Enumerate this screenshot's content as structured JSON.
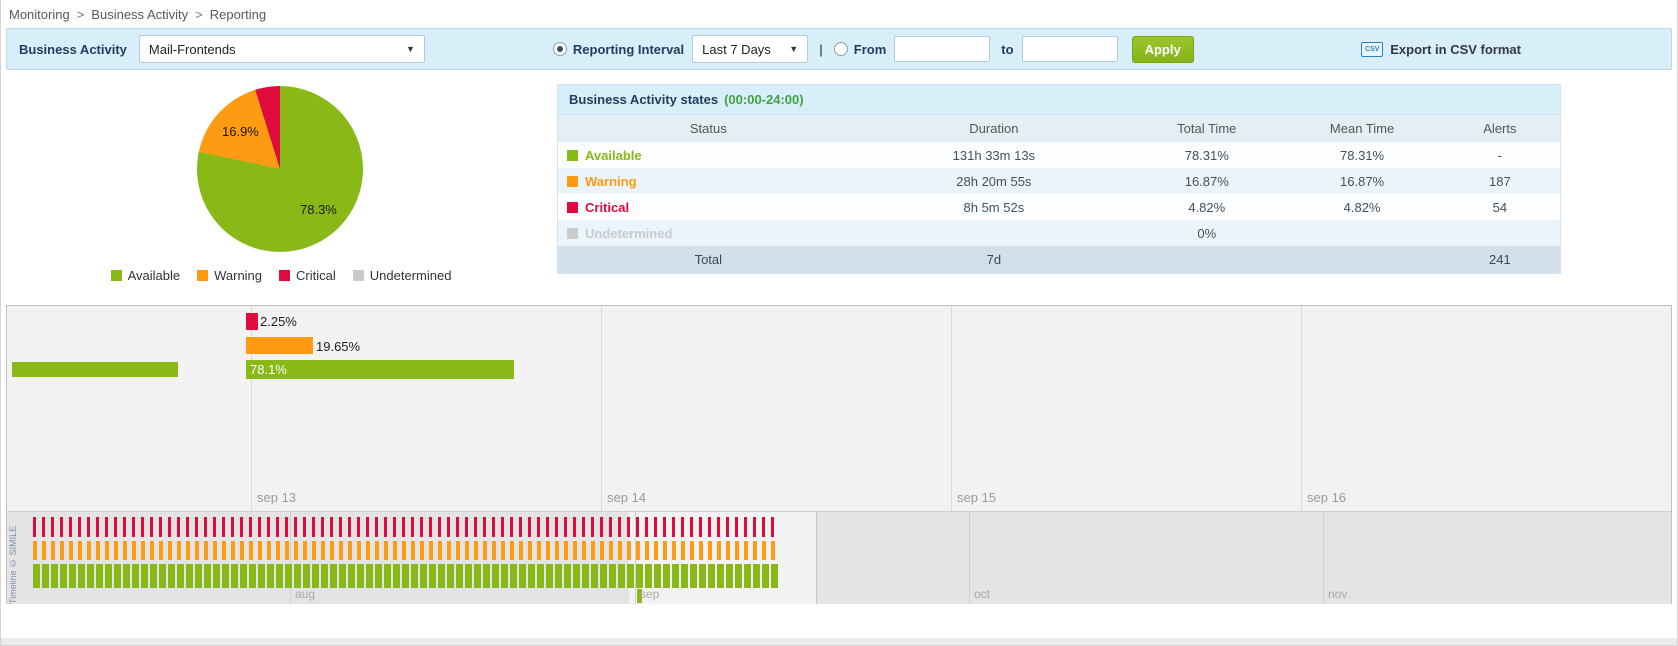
{
  "breadcrumb": {
    "sep": ">",
    "items": [
      "Monitoring",
      "Business Activity",
      "Reporting"
    ]
  },
  "toolbar": {
    "business_activity_label": "Business Activity",
    "business_activity_value": "Mail-Frontends",
    "reporting_interval_label": "Reporting Interval",
    "reporting_interval_value": "Last 7 Days",
    "separator": "|",
    "from_label": "From",
    "from_value": "",
    "to_label": "to",
    "to_value": "",
    "apply_label": "Apply",
    "csv_icon_text": "CSV",
    "export_label": "Export in CSV format"
  },
  "colors": {
    "available": "#88b917",
    "warning": "#ff9a13",
    "critical": "#e00b3d",
    "undetermined": "#c9cbcd"
  },
  "chart_data": [
    {
      "type": "pie",
      "labels": [
        "Available",
        "Warning",
        "Critical"
      ],
      "values": [
        78.31,
        16.87,
        4.82
      ],
      "colors": [
        "#88b917",
        "#ff9a13",
        "#e00b3d"
      ],
      "slice_labels": {
        "available": "78.3%",
        "warning": "16.9%"
      },
      "legend": [
        "Available",
        "Warning",
        "Critical",
        "Undetermined"
      ],
      "legend_position": "bottom"
    },
    {
      "type": "bar",
      "title": "Business activity state timeline",
      "bars": [
        {
          "name": "Critical",
          "label": "2.25%",
          "value": 2.25
        },
        {
          "name": "Warning",
          "label": "19.65%",
          "value": 19.65
        },
        {
          "name": "Available",
          "label": "78.1%",
          "value": 78.1
        }
      ],
      "x_ticks": [
        "sep 13",
        "sep 14",
        "sep 15",
        "sep 16"
      ],
      "overview_months": [
        "aug",
        "sep",
        "oct",
        "nov"
      ]
    }
  ],
  "table": {
    "title": "Business Activity states",
    "title_range": "(00:00-24:00)",
    "columns": [
      "Status",
      "Duration",
      "Total Time",
      "Mean Time",
      "Alerts"
    ],
    "rows": [
      {
        "status": "Available",
        "duration": "131h 33m 13s",
        "total_time": "78.31%",
        "mean_time": "78.31%",
        "alerts": "-"
      },
      {
        "status": "Warning",
        "duration": "28h 20m 55s",
        "total_time": "16.87%",
        "mean_time": "16.87%",
        "alerts": "187"
      },
      {
        "status": "Critical",
        "duration": "8h 5m 52s",
        "total_time": "4.82%",
        "mean_time": "4.82%",
        "alerts": "54"
      },
      {
        "status": "Undetermined",
        "duration": "",
        "total_time": "0%",
        "mean_time": "",
        "alerts": ""
      }
    ],
    "total_row": {
      "label": "Total",
      "duration": "7d",
      "alerts": "241"
    }
  },
  "timeline": {
    "credit": "Timeline © SIMILE",
    "overview": {
      "rows": [
        {
          "state": "critical",
          "count": 83
        },
        {
          "state": "warning",
          "count": 83
        },
        {
          "state": "available",
          "count": 83
        }
      ]
    }
  }
}
